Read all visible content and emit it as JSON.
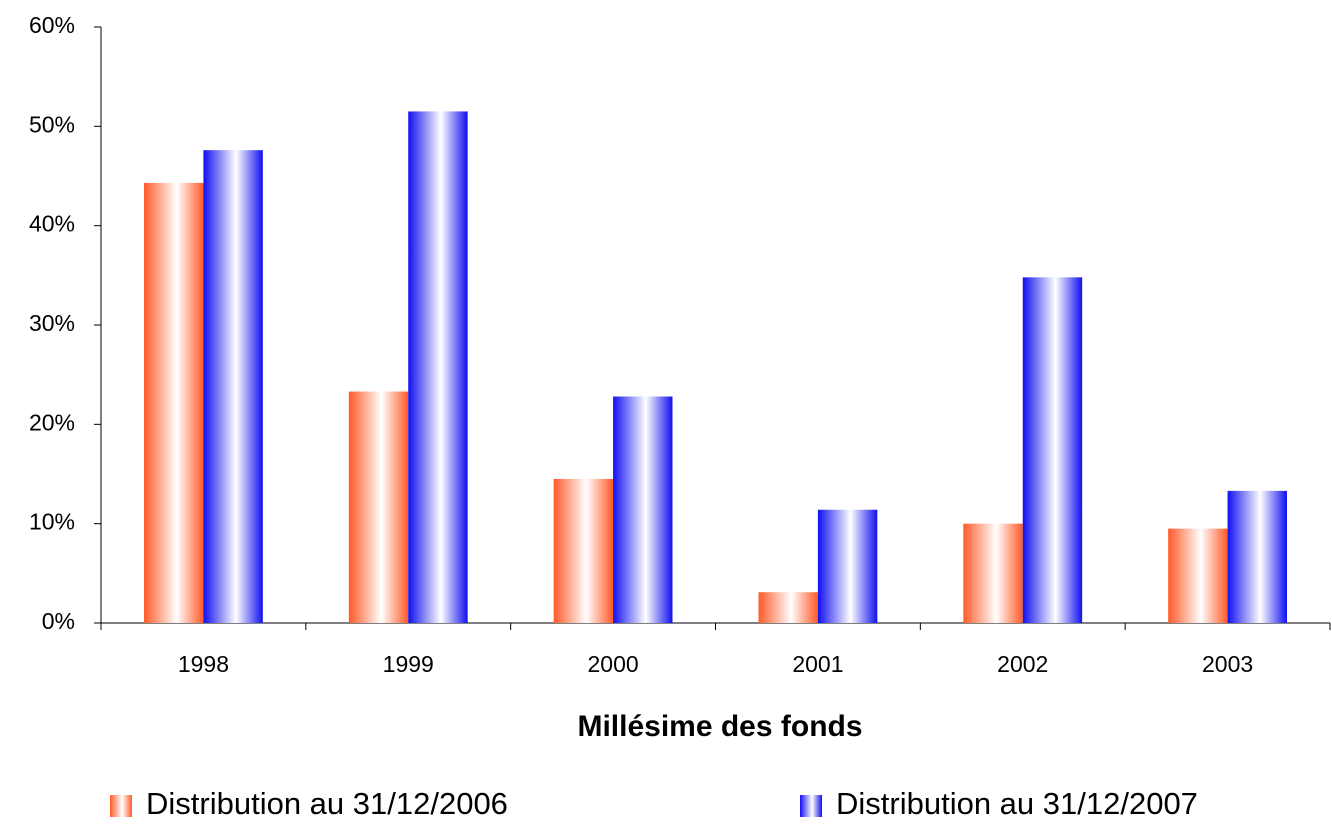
{
  "chart_data": {
    "type": "bar",
    "x_label": "Millésime des fonds",
    "categories": [
      "1998",
      "1999",
      "2000",
      "2001",
      "2002",
      "2003"
    ],
    "series": [
      {
        "name": "Distribution au 31/12/2006",
        "color": "#ff5a28",
        "values": [
          44.3,
          23.3,
          14.5,
          3.1,
          10.0,
          9.5
        ]
      },
      {
        "name": "Distribution au 31/12/2007",
        "color": "#1010f0",
        "values": [
          47.6,
          51.5,
          22.8,
          11.4,
          34.8,
          13.3
        ]
      }
    ],
    "ylim": [
      0,
      60
    ],
    "yticks": [
      {
        "value": 0,
        "label": "0%"
      },
      {
        "value": 10,
        "label": "10%"
      },
      {
        "value": 20,
        "label": "20%"
      },
      {
        "value": 30,
        "label": "30%"
      },
      {
        "value": 40,
        "label": "40%"
      },
      {
        "value": 50,
        "label": "50%"
      },
      {
        "value": 60,
        "label": "60%"
      }
    ],
    "grid": false,
    "legend": "bottom"
  }
}
